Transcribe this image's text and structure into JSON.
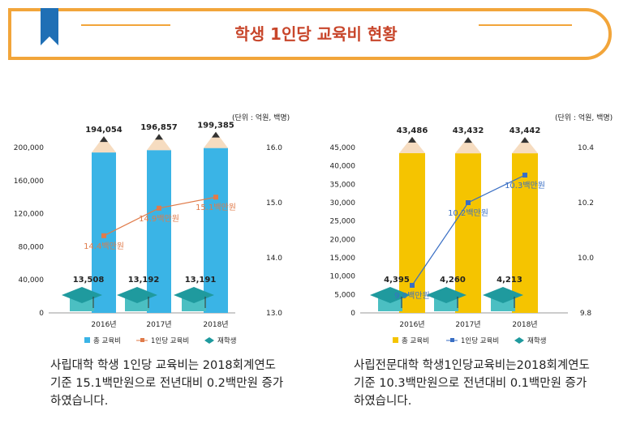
{
  "header": {
    "title": "학생 1인당 교육비 현황"
  },
  "panels": [
    {
      "label": "사립대학",
      "unit": "(단위 : 억원, 백명)",
      "caption": "사립대학 학생 1인당 교육비는 2018회계연도\n기준 15.1백만원으로 전년대비 0.2백만원 증가\n하였습니다.",
      "color": "#3ab4e6",
      "pill_color": "#1d5fa8",
      "line_color": "#e07b4a"
    },
    {
      "label": "사립전문대학",
      "unit": "(단위 : 억원, 백명)",
      "caption": "사립전문대학 학생1인당교육비는2018회계연도\n기준 10.3백만원으로 전년대비 0.1백만원 증가\n하였습니다.",
      "color": "#f5c400",
      "pill_color": "#e8921e",
      "line_color": "#3a6fc4"
    }
  ],
  "legend": {
    "total": "총 교육비",
    "per_student": "1인당 교육비",
    "students": "재학생"
  },
  "chart_data": [
    {
      "type": "bar",
      "categories": [
        "2016년",
        "2017년",
        "2018년"
      ],
      "series": [
        {
          "name": "총 교육비",
          "values": [
            194054,
            196857,
            199385
          ],
          "labels": [
            "194,054",
            "196,857",
            "199,385"
          ]
        },
        {
          "name": "1인당 교육비",
          "values": [
            14.4,
            14.9,
            15.1
          ],
          "labels": [
            "14.4백만원",
            "14.9백만원",
            "15.1백만원"
          ]
        },
        {
          "name": "재학생",
          "values": [
            13508,
            13192,
            13191
          ],
          "labels": [
            "13,508",
            "13,192",
            "13,191"
          ]
        }
      ],
      "ylim": [
        0,
        200000
      ],
      "yticks": [
        "0",
        "40,000",
        "80,000",
        "120,000",
        "160,000",
        "200,000"
      ],
      "y2lim": [
        13.0,
        16.0
      ],
      "y2ticks": [
        "13.0",
        "14.0",
        "15.0",
        "16.0"
      ]
    },
    {
      "type": "bar",
      "categories": [
        "2016년",
        "2017년",
        "2018년"
      ],
      "series": [
        {
          "name": "총 교육비",
          "values": [
            43486,
            43432,
            43442
          ],
          "labels": [
            "43,486",
            "43,432",
            "43,442"
          ]
        },
        {
          "name": "1인당 교육비",
          "values": [
            9.9,
            10.2,
            10.3
          ],
          "labels": [
            "9.9백만원",
            "10.2백만원",
            "10.3백만원"
          ]
        },
        {
          "name": "재학생",
          "values": [
            4395,
            4260,
            4213
          ],
          "labels": [
            "4,395",
            "4,260",
            "4,213"
          ]
        }
      ],
      "ylim": [
        0,
        45000
      ],
      "yticks": [
        "0",
        "5,000",
        "10,000",
        "15,000",
        "20,000",
        "25,000",
        "30,000",
        "35,000",
        "40,000",
        "45,000"
      ],
      "y2lim": [
        9.8,
        10.4
      ],
      "y2ticks": [
        "9.8",
        "10.0",
        "10.2",
        "10.4"
      ]
    }
  ]
}
